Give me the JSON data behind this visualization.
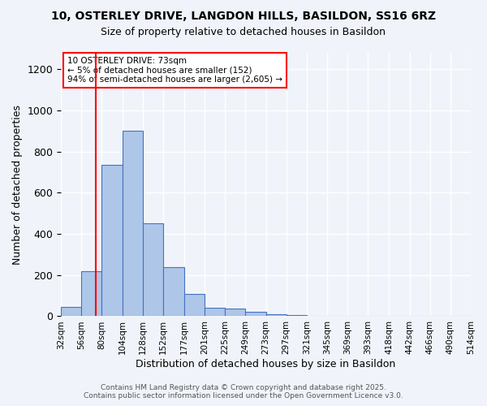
{
  "title1": "10, OSTERLEY DRIVE, LANGDON HILLS, BASILDON, SS16 6RZ",
  "title2": "Size of property relative to detached houses in Basildon",
  "xlabel": "Distribution of detached houses by size in Basildon",
  "ylabel": "Number of detached properties",
  "bar_labels": [
    "32sqm",
    "56sqm",
    "80sqm",
    "104sqm",
    "128sqm",
    "152sqm",
    "177sqm",
    "201sqm",
    "225sqm",
    "249sqm",
    "273sqm",
    "297sqm",
    "321sqm",
    "345sqm",
    "369sqm",
    "393sqm",
    "418sqm",
    "442sqm",
    "466sqm",
    "490sqm",
    "514sqm"
  ],
  "bar_values": [
    47,
    220,
    735,
    900,
    450,
    238,
    107,
    42,
    37,
    23,
    10,
    5,
    0,
    0,
    0,
    0,
    0,
    0,
    0,
    0
  ],
  "bar_color": "#aec6e8",
  "bar_edge_color": "#4472c4",
  "background_color": "#f0f4fa",
  "grid_color": "#ffffff",
  "red_line_x": 73,
  "bin_edges": [
    32,
    56,
    80,
    104,
    128,
    152,
    177,
    201,
    225,
    249,
    273,
    297,
    321,
    345,
    369,
    393,
    418,
    442,
    466,
    490,
    514
  ],
  "ylim": [
    0,
    1280
  ],
  "yticks": [
    0,
    200,
    400,
    600,
    800,
    1000,
    1200
  ],
  "annotation_title": "10 OSTERLEY DRIVE: 73sqm",
  "annotation_line1": "← 5% of detached houses are smaller (152)",
  "annotation_line2": "94% of semi-detached houses are larger (2,605) →",
  "footer1": "Contains HM Land Registry data © Crown copyright and database right 2025.",
  "footer2": "Contains public sector information licensed under the Open Government Licence v3.0."
}
